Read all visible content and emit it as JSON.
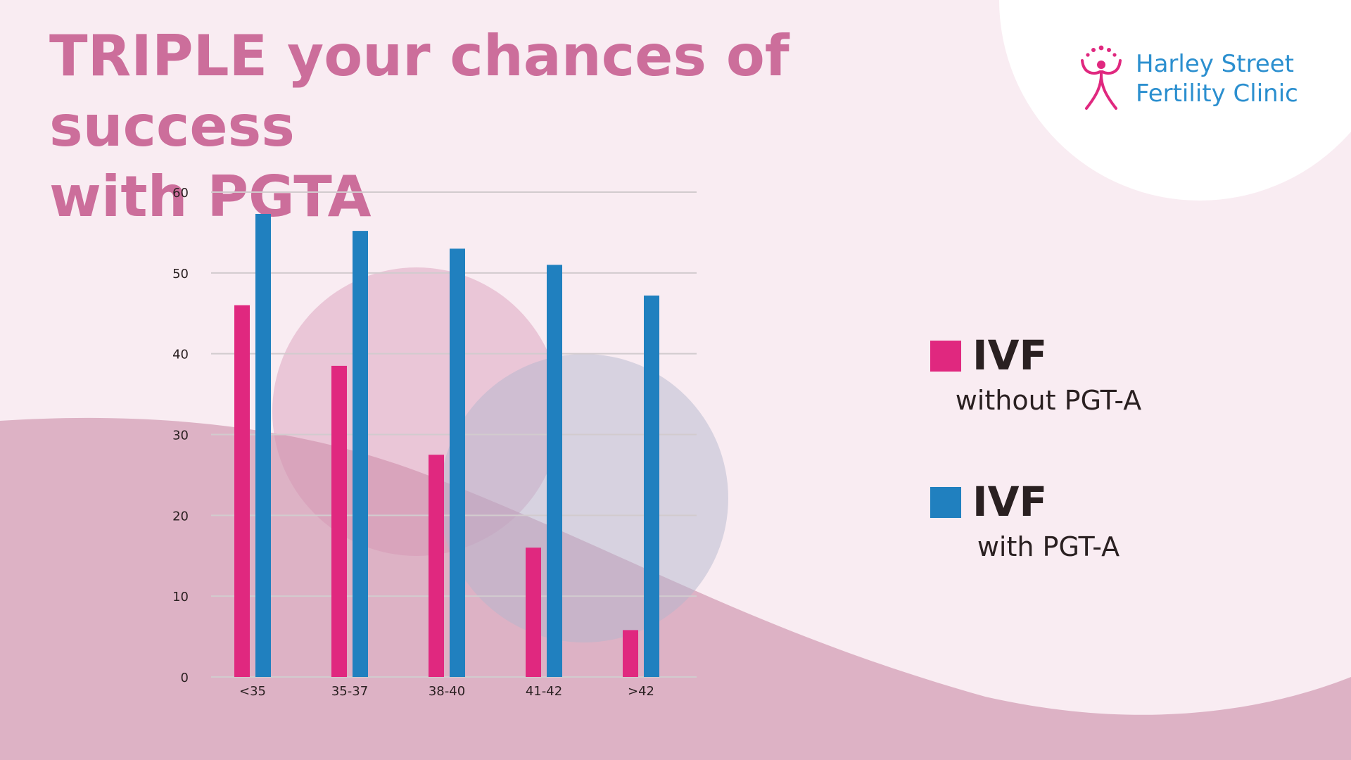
{
  "title_lines": [
    "TRIPLE your chances of success",
    "with PGTA"
  ],
  "logo": {
    "line1": "Harley Street",
    "line2": "Fertility Clinic",
    "icon": "fertility-figure-icon",
    "text_color": "#2b8fcf",
    "icon_color": "#e0287f"
  },
  "legend": [
    {
      "name": "IVF",
      "subtitle": "without PGT-A",
      "color": "#e0287f"
    },
    {
      "name": "IVF",
      "subtitle": "with PGT-A",
      "color": "#2080bf"
    }
  ],
  "chart_data": {
    "type": "bar",
    "categories": [
      "<35",
      "35-37",
      "38-40",
      "41-42",
      ">42"
    ],
    "series": [
      {
        "values": [
          46,
          38.5,
          27.5,
          16,
          5.8
        ],
        "color": "#e0287f"
      },
      {
        "values": [
          57.3,
          55.2,
          53,
          51,
          47.2
        ],
        "color": "#2080bf"
      }
    ],
    "y_ticks": [
      0,
      10,
      20,
      30,
      40,
      50,
      60
    ],
    "ylim": [
      0,
      60
    ],
    "grid": true,
    "legend_position": "right"
  },
  "colors": {
    "background": "#f9ecf2",
    "wave": "#ddb2c5",
    "title": "#cc6e9b"
  }
}
